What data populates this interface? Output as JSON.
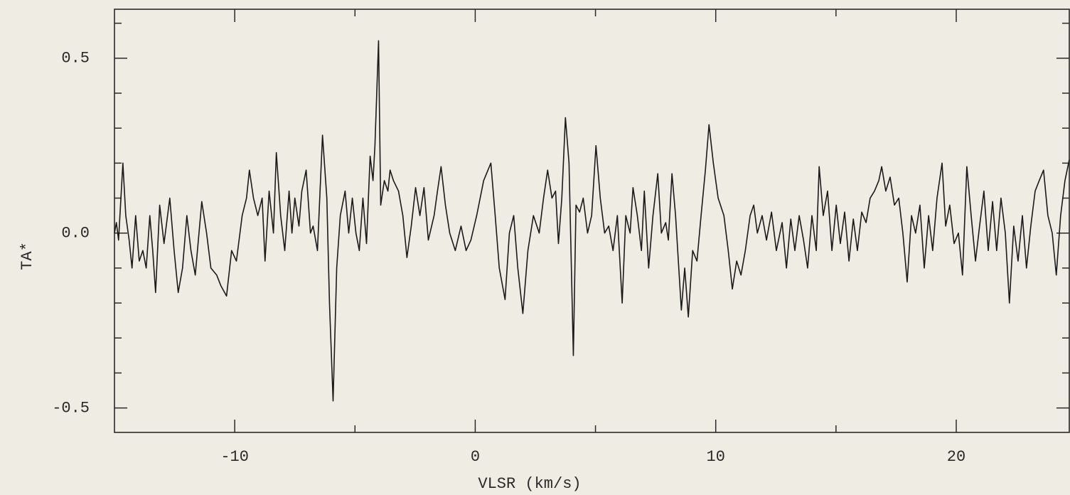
{
  "chart_data": {
    "type": "line",
    "xlabel": "VLSR (km/s)",
    "ylabel": "TA*",
    "x": [
      -15.0,
      -14.92,
      -14.83,
      -14.65,
      -14.53,
      -14.39,
      -14.27,
      -14.12,
      -13.97,
      -13.82,
      -13.68,
      -13.53,
      -13.41,
      -13.29,
      -13.12,
      -12.94,
      -12.7,
      -12.52,
      -12.35,
      -12.17,
      -11.99,
      -11.82,
      -11.64,
      -11.37,
      -11.17,
      -10.99,
      -10.75,
      -10.58,
      -10.34,
      -10.13,
      -9.93,
      -9.69,
      -9.51,
      -9.39,
      -9.22,
      -9.04,
      -8.86,
      -8.74,
      -8.57,
      -8.39,
      -8.27,
      -8.09,
      -7.92,
      -7.74,
      -7.62,
      -7.5,
      -7.33,
      -7.21,
      -7.03,
      -6.85,
      -6.74,
      -6.56,
      -6.35,
      -6.17,
      -6.06,
      -5.91,
      -5.76,
      -5.61,
      -5.41,
      -5.26,
      -5.11,
      -4.96,
      -4.82,
      -4.67,
      -4.52,
      -4.37,
      -4.25,
      -4.17,
      -4.02,
      -3.93,
      -3.78,
      -3.63,
      -3.54,
      -3.4,
      -3.19,
      -3.01,
      -2.84,
      -2.66,
      -2.48,
      -2.3,
      -2.13,
      -1.95,
      -1.71,
      -1.57,
      -1.42,
      -1.24,
      -1.06,
      -0.83,
      -0.59,
      -0.38,
      -0.18,
      0.06,
      0.35,
      0.65,
      0.83,
      1.0,
      1.24,
      1.42,
      1.6,
      1.77,
      1.98,
      2.19,
      2.42,
      2.66,
      2.84,
      3.01,
      3.19,
      3.34,
      3.46,
      3.6,
      3.75,
      3.9,
      4.08,
      4.19,
      4.34,
      4.49,
      4.67,
      4.84,
      5.02,
      5.2,
      5.38,
      5.55,
      5.73,
      5.91,
      6.11,
      6.26,
      6.44,
      6.56,
      6.74,
      6.91,
      7.03,
      7.21,
      7.39,
      7.59,
      7.74,
      7.92,
      8.03,
      8.18,
      8.33,
      8.57,
      8.71,
      8.86,
      9.04,
      9.22,
      9.39,
      9.57,
      9.72,
      9.9,
      10.1,
      10.34,
      10.52,
      10.69,
      10.87,
      11.05,
      11.23,
      11.43,
      11.58,
      11.73,
      11.93,
      12.11,
      12.32,
      12.52,
      12.76,
      12.94,
      13.12,
      13.29,
      13.47,
      13.65,
      13.82,
      14.0,
      14.18,
      14.3,
      14.47,
      14.65,
      14.83,
      15.01,
      15.18,
      15.36,
      15.54,
      15.72,
      15.89,
      16.07,
      16.25,
      16.42,
      16.6,
      16.78,
      16.9,
      17.07,
      17.25,
      17.43,
      17.61,
      17.78,
      17.96,
      18.14,
      18.31,
      18.49,
      18.67,
      18.85,
      19.02,
      19.2,
      19.41,
      19.56,
      19.73,
      19.91,
      20.09,
      20.26,
      20.44,
      20.62,
      20.8,
      20.97,
      21.15,
      21.33,
      21.51,
      21.68,
      21.86,
      22.04,
      22.21,
      22.39,
      22.57,
      22.75,
      22.92,
      23.1,
      23.28,
      23.45,
      23.63,
      23.81,
      23.99,
      24.16,
      24.34,
      24.52,
      24.7
    ],
    "values": [
      0.0,
      0.03,
      -0.02,
      0.2,
      0.05,
      -0.02,
      -0.1,
      0.05,
      -0.08,
      -0.05,
      -0.1,
      0.05,
      -0.05,
      -0.17,
      0.08,
      -0.03,
      0.1,
      -0.05,
      -0.17,
      -0.1,
      0.05,
      -0.05,
      -0.12,
      0.09,
      0.0,
      -0.1,
      -0.12,
      -0.15,
      -0.18,
      -0.05,
      -0.08,
      0.05,
      0.1,
      0.18,
      0.1,
      0.05,
      0.1,
      -0.08,
      0.12,
      0.0,
      0.23,
      0.05,
      -0.05,
      0.12,
      0.0,
      0.1,
      0.02,
      0.12,
      0.18,
      0.0,
      0.02,
      -0.05,
      0.28,
      0.1,
      -0.2,
      -0.48,
      -0.1,
      0.05,
      0.12,
      0.0,
      0.1,
      0.0,
      -0.05,
      0.1,
      -0.03,
      0.22,
      0.15,
      0.25,
      0.55,
      0.08,
      0.15,
      0.12,
      0.18,
      0.15,
      0.12,
      0.05,
      -0.07,
      0.02,
      0.13,
      0.05,
      0.13,
      -0.02,
      0.05,
      0.12,
      0.19,
      0.08,
      0.0,
      -0.05,
      0.02,
      -0.05,
      -0.02,
      0.05,
      0.15,
      0.2,
      0.05,
      -0.1,
      -0.19,
      0.0,
      0.05,
      -0.1,
      -0.23,
      -0.05,
      0.05,
      0.0,
      0.1,
      0.18,
      0.1,
      0.12,
      -0.03,
      0.1,
      0.33,
      0.2,
      -0.35,
      0.08,
      0.06,
      0.1,
      0.0,
      0.05,
      0.25,
      0.1,
      0.0,
      0.02,
      -0.05,
      0.05,
      -0.2,
      0.05,
      0.0,
      0.13,
      0.05,
      -0.05,
      0.12,
      -0.1,
      0.05,
      0.17,
      0.0,
      0.03,
      -0.02,
      0.17,
      0.05,
      -0.22,
      -0.1,
      -0.24,
      -0.05,
      -0.08,
      0.05,
      0.18,
      0.31,
      0.2,
      0.1,
      0.05,
      -0.05,
      -0.16,
      -0.08,
      -0.12,
      -0.05,
      0.05,
      0.08,
      0.0,
      0.05,
      -0.02,
      0.06,
      -0.05,
      0.03,
      -0.1,
      0.04,
      -0.05,
      0.05,
      -0.02,
      -0.1,
      0.05,
      -0.05,
      0.19,
      0.05,
      0.12,
      -0.05,
      0.08,
      -0.03,
      0.06,
      -0.08,
      0.04,
      -0.05,
      0.06,
      0.03,
      0.1,
      0.12,
      0.15,
      0.19,
      0.12,
      0.16,
      0.08,
      0.1,
      0.0,
      -0.14,
      0.05,
      0.0,
      0.08,
      -0.1,
      0.05,
      -0.05,
      0.1,
      0.2,
      0.02,
      0.08,
      -0.03,
      0.0,
      -0.12,
      0.19,
      0.05,
      -0.08,
      0.02,
      0.12,
      -0.05,
      0.09,
      -0.05,
      0.1,
      0.0,
      -0.2,
      0.02,
      -0.08,
      0.05,
      -0.1,
      0.02,
      0.12,
      0.15,
      0.18,
      0.05,
      0.0,
      -0.12,
      0.05,
      0.15,
      0.21
    ],
    "color": "#1a1a1a",
    "xlim": [
      -15,
      24.7
    ],
    "xticks": [
      -10,
      0,
      10,
      20
    ],
    "xminorticks": [
      -5,
      5,
      15
    ],
    "ylim": [
      -0.57,
      0.64
    ],
    "yticks": [
      -0.5,
      {
        "value": 0,
        "label": "0.0"
      },
      0.5
    ],
    "yminorticks": [
      -0.4,
      -0.3,
      -0.2,
      -0.1,
      0.1,
      0.2,
      0.3,
      0.4,
      0.6
    ],
    "grid": false
  }
}
